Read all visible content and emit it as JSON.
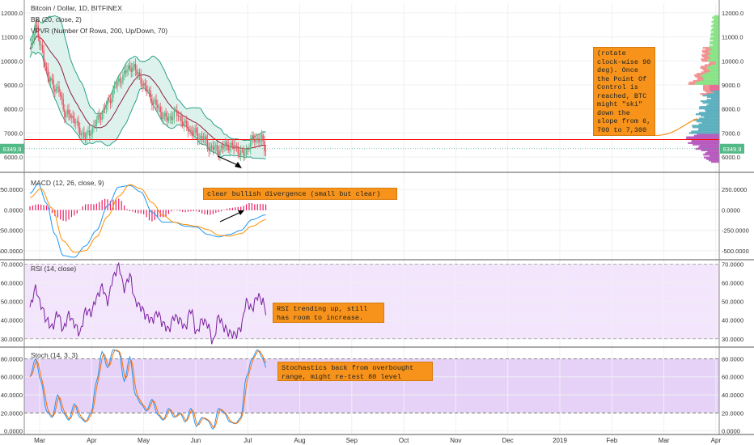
{
  "chart_data": {
    "type": "candlestick",
    "colors": {
      "up": "#53b987",
      "down": "#eb4d5c",
      "bb_fill": "#d6efe9",
      "bb_band": "#2aa084",
      "bb_basis": "#8e1f3a",
      "macd": "#2196f3",
      "signal": "#ff8f00",
      "hist": "#e91e63",
      "rsi": "#7b1fa2",
      "stoch_k": "#2196f3",
      "stoch_d": "#ff6d00",
      "osc_bg": "#f3e5fb",
      "poc": "#ff0000",
      "note": "#f7931a"
    },
    "title": "Bitcoin / Dollar, 1D, BITFINEX",
    "indicators": [
      "BB (20, close, 2)",
      "VPVR (Number Of Rows, 200, Up/Down, 70)"
    ],
    "price": {
      "ticks": [
        "12000.0",
        "11000.0",
        "10000.0",
        "9000.0",
        "8000.0",
        "7000.0",
        "6000.0"
      ],
      "tick_values": [
        12000,
        11000,
        10000,
        9000,
        8000,
        7000,
        6000
      ],
      "last": "6349.9",
      "last_value": 6349.9,
      "poc_value": 6730,
      "ylim": [
        5400,
        12400
      ],
      "anchors": [
        [
          0,
          10400
        ],
        [
          4,
          11500
        ],
        [
          8,
          10500
        ],
        [
          14,
          9200
        ],
        [
          20,
          8800
        ],
        [
          26,
          7800
        ],
        [
          32,
          7600
        ],
        [
          36,
          7000
        ],
        [
          42,
          6900
        ],
        [
          48,
          7500
        ],
        [
          56,
          8200
        ],
        [
          62,
          9000
        ],
        [
          70,
          9600
        ],
        [
          74,
          9800
        ],
        [
          78,
          9400
        ],
        [
          84,
          8800
        ],
        [
          90,
          8200
        ],
        [
          98,
          7600
        ],
        [
          106,
          7800
        ],
        [
          112,
          7300
        ],
        [
          118,
          7000
        ],
        [
          124,
          6800
        ],
        [
          130,
          6400
        ],
        [
          136,
          6300
        ],
        [
          142,
          6500
        ],
        [
          148,
          6400
        ],
        [
          154,
          6100
        ],
        [
          160,
          6700
        ],
        [
          166,
          6800
        ],
        [
          170,
          6300
        ]
      ]
    },
    "macd": {
      "title": "MACD (12, 26, close, 9)",
      "ticks": [
        "250.0000",
        "0.0000",
        "-250.0000",
        "-500.0000"
      ],
      "tick_values": [
        250,
        0,
        -250,
        -500
      ],
      "ylim": [
        -600,
        450
      ],
      "macd_anchors": [
        [
          0,
          200
        ],
        [
          6,
          320
        ],
        [
          12,
          80
        ],
        [
          18,
          -300
        ],
        [
          24,
          -560
        ],
        [
          32,
          -580
        ],
        [
          40,
          -440
        ],
        [
          48,
          -250
        ],
        [
          56,
          50
        ],
        [
          64,
          280
        ],
        [
          72,
          300
        ],
        [
          80,
          220
        ],
        [
          88,
          -30
        ],
        [
          96,
          -150
        ],
        [
          104,
          -150
        ],
        [
          112,
          -200
        ],
        [
          120,
          -210
        ],
        [
          128,
          -300
        ],
        [
          136,
          -330
        ],
        [
          144,
          -300
        ],
        [
          152,
          -250
        ],
        [
          160,
          -120
        ],
        [
          170,
          -60
        ]
      ],
      "signal_anchors": [
        [
          0,
          150
        ],
        [
          8,
          260
        ],
        [
          16,
          20
        ],
        [
          24,
          -380
        ],
        [
          32,
          -520
        ],
        [
          40,
          -500
        ],
        [
          48,
          -330
        ],
        [
          56,
          -80
        ],
        [
          64,
          170
        ],
        [
          72,
          310
        ],
        [
          80,
          260
        ],
        [
          88,
          90
        ],
        [
          96,
          -70
        ],
        [
          104,
          -150
        ],
        [
          112,
          -180
        ],
        [
          120,
          -200
        ],
        [
          128,
          -240
        ],
        [
          136,
          -310
        ],
        [
          144,
          -320
        ],
        [
          152,
          -290
        ],
        [
          160,
          -200
        ],
        [
          170,
          -120
        ]
      ],
      "hist_anchors": [
        [
          0,
          50
        ],
        [
          6,
          60
        ],
        [
          12,
          60
        ],
        [
          18,
          -60
        ],
        [
          24,
          -140
        ],
        [
          32,
          -60
        ],
        [
          40,
          60
        ],
        [
          48,
          80
        ],
        [
          56,
          130
        ],
        [
          64,
          120
        ],
        [
          72,
          -10
        ],
        [
          80,
          -40
        ],
        [
          88,
          -120
        ],
        [
          96,
          -80
        ],
        [
          104,
          0
        ],
        [
          112,
          -20
        ],
        [
          120,
          -10
        ],
        [
          128,
          -60
        ],
        [
          136,
          -20
        ],
        [
          144,
          20
        ],
        [
          152,
          40
        ],
        [
          160,
          80
        ],
        [
          170,
          60
        ]
      ]
    },
    "rsi": {
      "title": "RSI (14, close)",
      "ticks": [
        "70.0000",
        "60.0000",
        "50.0000",
        "40.0000",
        "30.0000"
      ],
      "tick_values": [
        70,
        60,
        50,
        40,
        30
      ],
      "ylim": [
        26,
        72
      ],
      "band": [
        30,
        70
      ],
      "anchors": [
        [
          0,
          47
        ],
        [
          4,
          57
        ],
        [
          8,
          48
        ],
        [
          12,
          40
        ],
        [
          16,
          36
        ],
        [
          20,
          44
        ],
        [
          24,
          35
        ],
        [
          28,
          43
        ],
        [
          32,
          38
        ],
        [
          36,
          33
        ],
        [
          40,
          45
        ],
        [
          44,
          44
        ],
        [
          48,
          52
        ],
        [
          52,
          58
        ],
        [
          56,
          50
        ],
        [
          60,
          63
        ],
        [
          64,
          69
        ],
        [
          68,
          57
        ],
        [
          72,
          64
        ],
        [
          76,
          50
        ],
        [
          80,
          47
        ],
        [
          84,
          42
        ],
        [
          88,
          40
        ],
        [
          92,
          44
        ],
        [
          96,
          38
        ],
        [
          100,
          35
        ],
        [
          104,
          42
        ],
        [
          108,
          40
        ],
        [
          112,
          36
        ],
        [
          116,
          46
        ],
        [
          120,
          33
        ],
        [
          124,
          40
        ],
        [
          128,
          38
        ],
        [
          132,
          28
        ],
        [
          136,
          42
        ],
        [
          140,
          36
        ],
        [
          144,
          33
        ],
        [
          148,
          32
        ],
        [
          152,
          36
        ],
        [
          156,
          50
        ],
        [
          160,
          46
        ],
        [
          164,
          53
        ],
        [
          168,
          50
        ],
        [
          170,
          45
        ]
      ]
    },
    "stoch": {
      "title": "Stoch (14, 3, 3)",
      "ticks": [
        "80.0000",
        "60.0000",
        "40.0000",
        "20.0000",
        "0.0000"
      ],
      "tick_values": [
        80,
        60,
        40,
        20,
        0
      ],
      "ylim": [
        -3,
        92
      ],
      "band": [
        20,
        80
      ],
      "anchors": [
        [
          0,
          60
        ],
        [
          4,
          80
        ],
        [
          8,
          55
        ],
        [
          12,
          22
        ],
        [
          16,
          15
        ],
        [
          20,
          40
        ],
        [
          24,
          20
        ],
        [
          28,
          12
        ],
        [
          32,
          30
        ],
        [
          36,
          15
        ],
        [
          40,
          10
        ],
        [
          44,
          20
        ],
        [
          48,
          55
        ],
        [
          52,
          88
        ],
        [
          56,
          70
        ],
        [
          60,
          90
        ],
        [
          64,
          88
        ],
        [
          68,
          55
        ],
        [
          72,
          82
        ],
        [
          76,
          40
        ],
        [
          80,
          30
        ],
        [
          84,
          22
        ],
        [
          88,
          35
        ],
        [
          92,
          18
        ],
        [
          96,
          12
        ],
        [
          100,
          25
        ],
        [
          104,
          15
        ],
        [
          108,
          20
        ],
        [
          112,
          10
        ],
        [
          116,
          25
        ],
        [
          120,
          5
        ],
        [
          124,
          15
        ],
        [
          128,
          12
        ],
        [
          132,
          2
        ],
        [
          136,
          25
        ],
        [
          140,
          20
        ],
        [
          144,
          10
        ],
        [
          148,
          8
        ],
        [
          152,
          15
        ],
        [
          156,
          60
        ],
        [
          160,
          80
        ],
        [
          164,
          90
        ],
        [
          168,
          80
        ],
        [
          170,
          70
        ]
      ]
    },
    "x_labels": [
      "Mar",
      "Apr",
      "May",
      "Jun",
      "Jul",
      "Aug",
      "Sep",
      "Oct",
      "Nov",
      "Dec",
      "2019",
      "Feb",
      "Mar",
      "Apr"
    ]
  },
  "annotations": {
    "vpvr_note": "(rotate\nclock-wise 90\ndeg). Once\nthe Point Of\nControl is\nreached, BTC\nmight \"ski\"\ndown the\nslope from 6,\n700 to 7,300",
    "macd_note": "clear bullish divergence (small but clear)",
    "rsi_note": "RSI trending up, still\nhas room to increase.",
    "stoch_note": "Stochastics back from overbought\nrange, might re-test 80 level"
  }
}
